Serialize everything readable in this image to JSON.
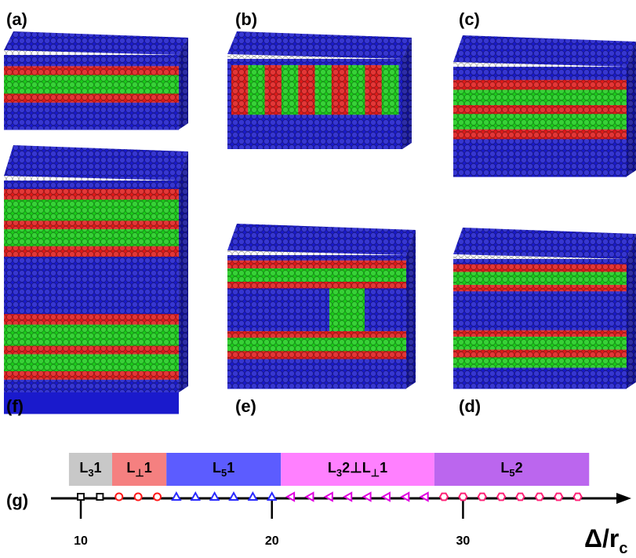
{
  "panels": [
    {
      "label": "(a)"
    },
    {
      "label": "(b)"
    },
    {
      "label": "(c)"
    },
    {
      "label": "(f)"
    },
    {
      "label": "(e)"
    },
    {
      "label": "(d)"
    }
  ],
  "phase_diagram": {
    "label": "(g)",
    "xlabel": "Δ/r",
    "xlabel_sub": "c",
    "xlim": [
      8.44,
      38.6
    ],
    "xticks": [
      10,
      20,
      30
    ],
    "regions": [
      {
        "label": [
          "L",
          "3",
          "1"
        ],
        "from": 9.38,
        "to": 11.64,
        "color": "#c8c8c8",
        "marker": "square",
        "marker_color": "#111111",
        "points": [
          10,
          11
        ]
      },
      {
        "label": [
          "L",
          "⊥",
          "1"
        ],
        "from": 11.64,
        "to": 14.48,
        "color": "#f58080",
        "marker": "circle",
        "marker_color": "#ff1a1a",
        "points": [
          12,
          13,
          14
        ]
      },
      {
        "label": [
          "L",
          "5",
          "1"
        ],
        "from": 14.48,
        "to": 20.47,
        "color": "#5c5cff",
        "marker": "triangle",
        "marker_color": "#2a2aff",
        "points": [
          15,
          16,
          17,
          18,
          19,
          20
        ]
      },
      {
        "label": [
          "L",
          "3",
          "2⊥L",
          "⊥",
          "1"
        ],
        "from": 20.47,
        "to": 28.5,
        "color": "#ff80ff",
        "marker": "left-triangle",
        "marker_color": "#e000e0",
        "points": [
          21,
          22,
          23,
          24,
          25,
          26,
          27,
          28
        ]
      },
      {
        "label": [
          "L",
          "5",
          "2"
        ],
        "from": 28.5,
        "to": 36.6,
        "color": "#bb66ee",
        "marker": "hexagon",
        "marker_color": "#ff2277",
        "points": [
          29,
          30,
          31,
          32,
          33,
          34,
          35,
          36
        ]
      }
    ]
  }
}
